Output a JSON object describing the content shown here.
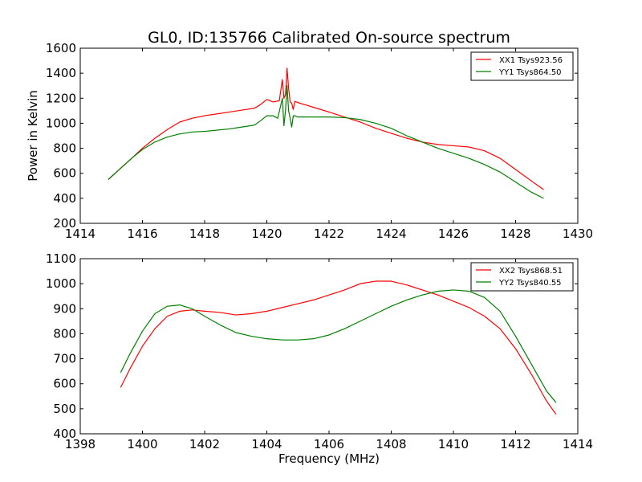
{
  "chart_data": [
    {
      "type": "line",
      "title": "GL0, ID:135766 Calibrated On-source spectrum",
      "xlabel": "",
      "ylabel": "Power in Kelvin",
      "xlim": [
        1414,
        1430
      ],
      "ylim": [
        200,
        1600
      ],
      "xticks": [
        1414,
        1416,
        1418,
        1420,
        1422,
        1424,
        1426,
        1428,
        1430
      ],
      "yticks": [
        200,
        400,
        600,
        800,
        1000,
        1200,
        1400,
        1600
      ],
      "grid": false,
      "legend": "top-right",
      "series": [
        {
          "name": "XX1 Tsys923.56",
          "color": "#ff0000",
          "x": [
            1414.9,
            1415.3,
            1415.7,
            1416.0,
            1416.4,
            1416.8,
            1417.2,
            1417.6,
            1418.0,
            1418.4,
            1418.8,
            1419.2,
            1419.6,
            1419.8,
            1420.0,
            1420.2,
            1420.4,
            1420.5,
            1420.55,
            1420.6,
            1420.65,
            1420.7,
            1420.75,
            1420.8,
            1420.85,
            1420.9,
            1421.0,
            1421.2,
            1421.6,
            1422.0,
            1422.5,
            1423.0,
            1423.5,
            1424.0,
            1424.5,
            1425.0,
            1425.5,
            1426.0,
            1426.5,
            1427.0,
            1427.5,
            1428.0,
            1428.5,
            1428.9
          ],
          "y": [
            550,
            640,
            730,
            800,
            880,
            950,
            1010,
            1040,
            1060,
            1075,
            1090,
            1105,
            1120,
            1150,
            1190,
            1170,
            1180,
            1350,
            1200,
            1230,
            1440,
            1280,
            1170,
            1160,
            1110,
            1175,
            1165,
            1150,
            1120,
            1090,
            1050,
            1010,
            960,
            920,
            880,
            850,
            830,
            820,
            810,
            780,
            720,
            630,
            540,
            470
          ]
        },
        {
          "name": "YY1 Tsys864.50",
          "color": "#008000",
          "x": [
            1414.9,
            1415.3,
            1415.7,
            1416.0,
            1416.4,
            1416.8,
            1417.2,
            1417.6,
            1418.0,
            1418.4,
            1418.8,
            1419.2,
            1419.6,
            1419.8,
            1420.0,
            1420.2,
            1420.35,
            1420.5,
            1420.55,
            1420.6,
            1420.65,
            1420.7,
            1420.75,
            1420.8,
            1420.85,
            1420.9,
            1421.0,
            1421.2,
            1421.6,
            1422.0,
            1422.5,
            1423.0,
            1423.5,
            1424.0,
            1424.5,
            1425.0,
            1425.5,
            1426.0,
            1426.5,
            1427.0,
            1427.5,
            1428.0,
            1428.5,
            1428.9
          ],
          "y": [
            550,
            640,
            730,
            790,
            850,
            890,
            915,
            930,
            935,
            945,
            955,
            970,
            985,
            1020,
            1060,
            1060,
            1040,
            1200,
            980,
            1100,
            1300,
            1100,
            1040,
            970,
            1060,
            1060,
            1050,
            1050,
            1050,
            1050,
            1045,
            1030,
            1000,
            960,
            900,
            850,
            800,
            760,
            720,
            670,
            610,
            530,
            450,
            400
          ]
        }
      ]
    },
    {
      "type": "line",
      "title": "",
      "xlabel": "Frequency (MHz)",
      "ylabel": "",
      "xlim": [
        1398,
        1414
      ],
      "ylim": [
        400,
        1100
      ],
      "xticks": [
        1398,
        1400,
        1402,
        1404,
        1406,
        1408,
        1410,
        1412,
        1414
      ],
      "yticks": [
        400,
        500,
        600,
        700,
        800,
        900,
        1000,
        1100
      ],
      "grid": false,
      "legend": "top-right",
      "series": [
        {
          "name": "XX2 Tsys868.51",
          "color": "#ff0000",
          "x": [
            1399.3,
            1399.6,
            1400.0,
            1400.4,
            1400.8,
            1401.2,
            1401.6,
            1402.0,
            1402.5,
            1403.0,
            1403.5,
            1404.0,
            1404.5,
            1405.0,
            1405.5,
            1406.0,
            1406.5,
            1407.0,
            1407.5,
            1408.0,
            1408.5,
            1409.0,
            1409.5,
            1410.0,
            1410.5,
            1411.0,
            1411.5,
            1412.0,
            1412.5,
            1413.0,
            1413.3
          ],
          "y": [
            585,
            660,
            750,
            820,
            870,
            890,
            895,
            890,
            885,
            875,
            880,
            890,
            905,
            920,
            935,
            955,
            975,
            1000,
            1010,
            1010,
            995,
            975,
            955,
            930,
            905,
            870,
            820,
            740,
            640,
            530,
            478
          ]
        },
        {
          "name": "YY2 Tsys840.55",
          "color": "#008000",
          "x": [
            1399.3,
            1399.6,
            1400.0,
            1400.4,
            1400.8,
            1401.2,
            1401.6,
            1402.0,
            1402.5,
            1403.0,
            1403.5,
            1404.0,
            1404.5,
            1405.0,
            1405.5,
            1406.0,
            1406.5,
            1407.0,
            1407.5,
            1408.0,
            1408.5,
            1409.0,
            1409.5,
            1410.0,
            1410.5,
            1411.0,
            1411.5,
            1412.0,
            1412.5,
            1413.0,
            1413.3
          ],
          "y": [
            645,
            720,
            810,
            880,
            910,
            915,
            900,
            870,
            835,
            805,
            790,
            780,
            775,
            775,
            780,
            795,
            820,
            850,
            880,
            910,
            935,
            955,
            970,
            975,
            970,
            945,
            890,
            790,
            680,
            570,
            525
          ]
        }
      ]
    }
  ]
}
